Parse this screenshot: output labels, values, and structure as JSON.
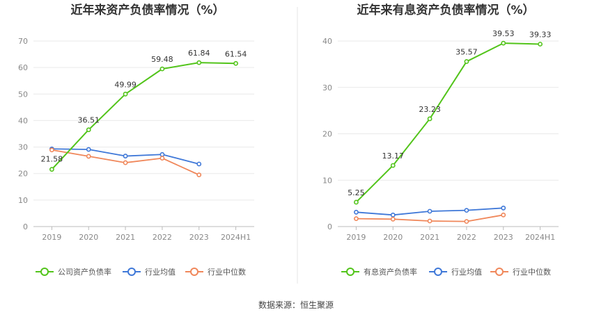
{
  "source": "数据来源：恒生聚源",
  "chart_data": [
    {
      "type": "line",
      "title": "近年来资产负债率情况（%）",
      "categories": [
        "2019",
        "2020",
        "2021",
        "2022",
        "2023",
        "2024H1"
      ],
      "ylim": [
        0,
        70
      ],
      "yticks": [
        0,
        10,
        20,
        30,
        40,
        50,
        60,
        70
      ],
      "grid": true,
      "legend": "bottom",
      "series": [
        {
          "name": "公司资产负债率",
          "color": "#52c41a",
          "values": [
            21.58,
            36.51,
            49.99,
            59.48,
            61.84,
            61.54
          ],
          "labels": [
            "21.58",
            "36.51",
            "49.99",
            "59.48",
            "61.84",
            "61.54"
          ]
        },
        {
          "name": "行业均值",
          "color": "#3f78d8",
          "values": [
            29.3,
            29.1,
            26.6,
            27.2,
            23.6,
            null
          ],
          "labels": []
        },
        {
          "name": "行业中位数",
          "color": "#f0875a",
          "values": [
            28.9,
            26.5,
            24.1,
            25.8,
            19.5,
            null
          ],
          "labels": []
        }
      ]
    },
    {
      "type": "line",
      "title": "近年来有息资产负债率情况（%）",
      "categories": [
        "2019",
        "2020",
        "2021",
        "2022",
        "2023",
        "2024H1"
      ],
      "ylim": [
        0,
        40
      ],
      "yticks": [
        0,
        10,
        20,
        30,
        40
      ],
      "grid": true,
      "legend": "bottom",
      "series": [
        {
          "name": "有息资产负债率",
          "color": "#52c41a",
          "values": [
            5.25,
            13.17,
            23.23,
            35.57,
            39.53,
            39.33
          ],
          "labels": [
            "5.25",
            "13.17",
            "23.23",
            "35.57",
            "39.53",
            "39.33"
          ]
        },
        {
          "name": "行业均值",
          "color": "#3f78d8",
          "values": [
            3.1,
            2.5,
            3.3,
            3.5,
            4.0,
            null
          ],
          "labels": []
        },
        {
          "name": "行业中位数",
          "color": "#f0875a",
          "values": [
            1.7,
            1.6,
            1.2,
            1.1,
            2.5,
            null
          ],
          "labels": []
        }
      ]
    }
  ]
}
